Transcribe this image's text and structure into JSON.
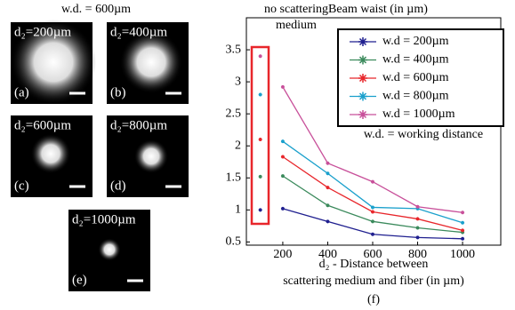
{
  "panel_title": "w.d. = 600µm",
  "panels": [
    {
      "label": "d₂=200µm",
      "tag": "(a)"
    },
    {
      "label": "d₂=400µm",
      "tag": "(b)"
    },
    {
      "label": "d₂=600µm",
      "tag": "(c)"
    },
    {
      "label": "d₂=800µm",
      "tag": "(d)"
    },
    {
      "label": "d₂=1000µm",
      "tag": "(e)"
    }
  ],
  "chart_data": {
    "type": "line",
    "title": "Beam waist (in µm)",
    "x_label": [
      "d₂ - Distance between",
      "scattering medium and fiber (in µm)"
    ],
    "panel_tag": "(f)",
    "annotation": "w.d. = working distance",
    "no_scattering_label": [
      "no scattering",
      "medium"
    ],
    "no_scattering_x": 100,
    "x": [
      200,
      400,
      600,
      800,
      1000
    ],
    "series": [
      {
        "name": "w.d = 200µm",
        "color": "#1f1f8f",
        "no_scattering_value": 1.0,
        "values": [
          1.02,
          0.82,
          0.62,
          0.57,
          0.55
        ]
      },
      {
        "name": "w.d = 400µm",
        "color": "#3b8a5c",
        "no_scattering_value": 1.52,
        "values": [
          1.53,
          1.07,
          0.82,
          0.72,
          0.65
        ]
      },
      {
        "name": "w.d = 600µm",
        "color": "#e8262b",
        "no_scattering_value": 2.1,
        "values": [
          1.83,
          1.35,
          0.97,
          0.86,
          0.68
        ]
      },
      {
        "name": "w.d = 800µm",
        "color": "#1aa0cc",
        "no_scattering_value": 2.8,
        "values": [
          2.07,
          1.57,
          1.04,
          1.02,
          0.8
        ]
      },
      {
        "name": "w.d = 1000µm",
        "color": "#c8509a",
        "no_scattering_value": 3.4,
        "values": [
          2.92,
          1.73,
          1.44,
          1.05,
          0.96
        ]
      }
    ],
    "xlim": [
      38,
      1170
    ],
    "ylim": [
      0.45,
      4.0
    ],
    "xticks": [
      200,
      400,
      600,
      800,
      1000
    ],
    "yticks": [
      0.5,
      1,
      1.5,
      2,
      2.5,
      3,
      3.5
    ],
    "legend": "upper right"
  }
}
